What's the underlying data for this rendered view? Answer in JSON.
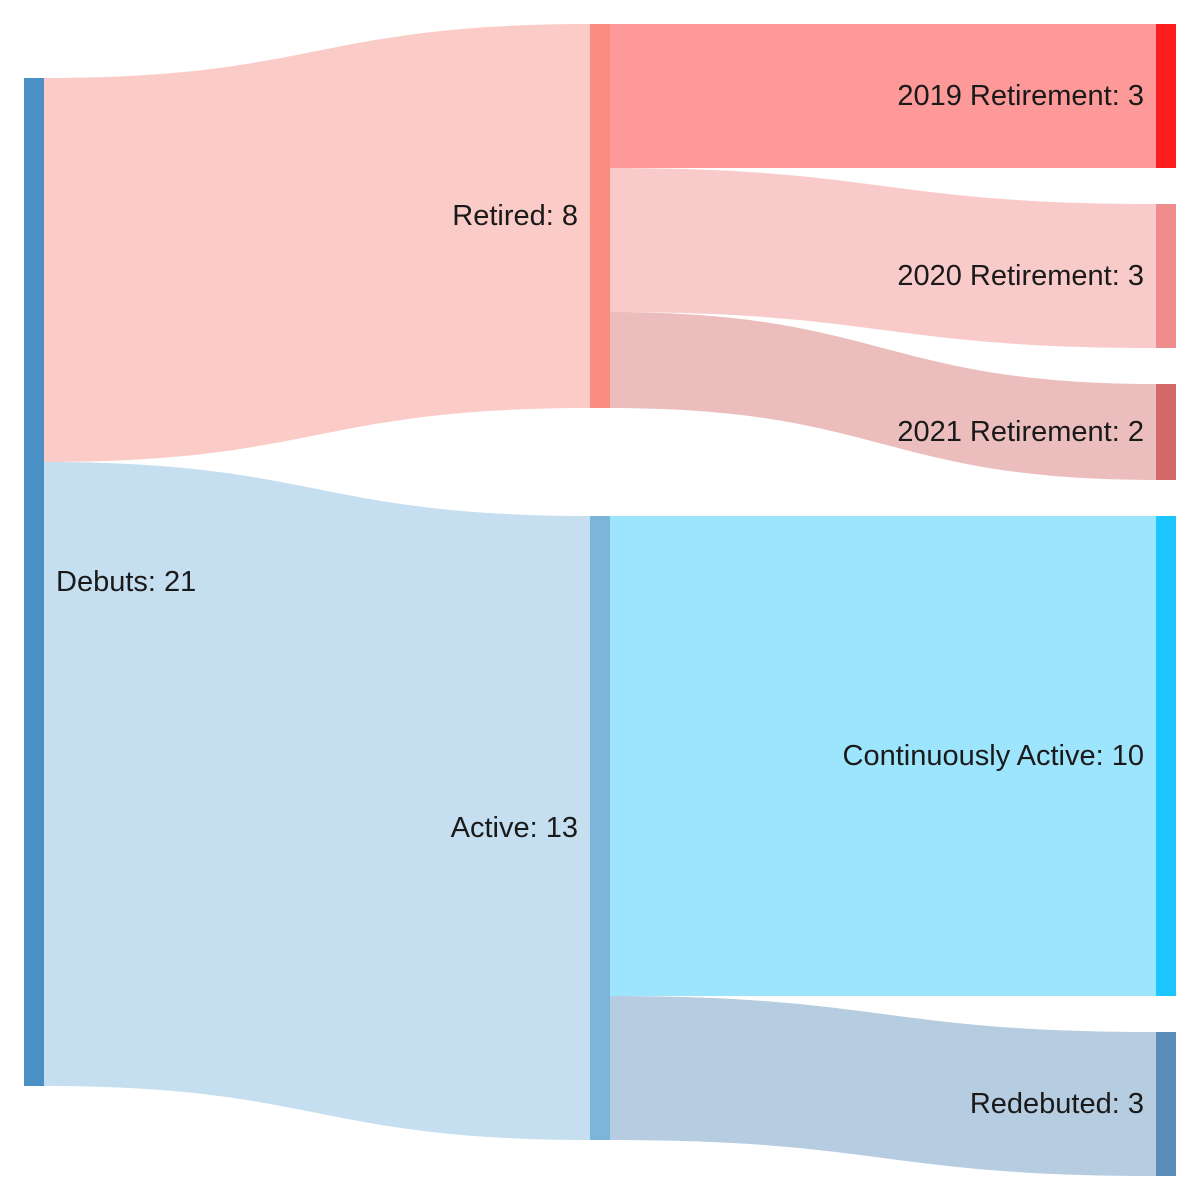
{
  "diagram": {
    "type": "sankey",
    "nodes": [
      {
        "id": "debuts",
        "label": "Debuts: 21",
        "value": 21,
        "column": 0,
        "color": "#4a90c4"
      },
      {
        "id": "retired",
        "label": "Retired: 8",
        "value": 8,
        "column": 1,
        "color": "#fa8c80"
      },
      {
        "id": "active",
        "label": "Active: 13",
        "value": 13,
        "column": 1,
        "color": "#7bb5d9"
      },
      {
        "id": "r2019",
        "label": "2019 Retirement: 3",
        "value": 3,
        "column": 2,
        "color": "#fc1e1e"
      },
      {
        "id": "r2020",
        "label": "2020 Retirement: 3",
        "value": 3,
        "column": 2,
        "color": "#f08c8c"
      },
      {
        "id": "r2021",
        "label": "2021 Retirement: 2",
        "value": 2,
        "column": 2,
        "color": "#d26868"
      },
      {
        "id": "cont",
        "label": "Continuously Active: 10",
        "value": 10,
        "column": 2,
        "color": "#1ec6ff"
      },
      {
        "id": "redeb",
        "label": "Redebuted: 3",
        "value": 3,
        "column": 2,
        "color": "#5a8dba"
      }
    ],
    "links": [
      {
        "source": "debuts",
        "target": "retired",
        "value": 8,
        "color": "#fbcbc7"
      },
      {
        "source": "debuts",
        "target": "active",
        "value": 13,
        "color": "#c5dff0"
      },
      {
        "source": "retired",
        "target": "r2019",
        "value": 3,
        "color": "#fd9999"
      },
      {
        "source": "retired",
        "target": "r2020",
        "value": 3,
        "color": "#f8cbca"
      },
      {
        "source": "retired",
        "target": "r2021",
        "value": 2,
        "color": "#ebbebd"
      },
      {
        "source": "active",
        "target": "cont",
        "value": 10,
        "color": "#9ce5fd"
      },
      {
        "source": "active",
        "target": "redeb",
        "value": 3,
        "color": "#b6cce0"
      }
    ]
  }
}
